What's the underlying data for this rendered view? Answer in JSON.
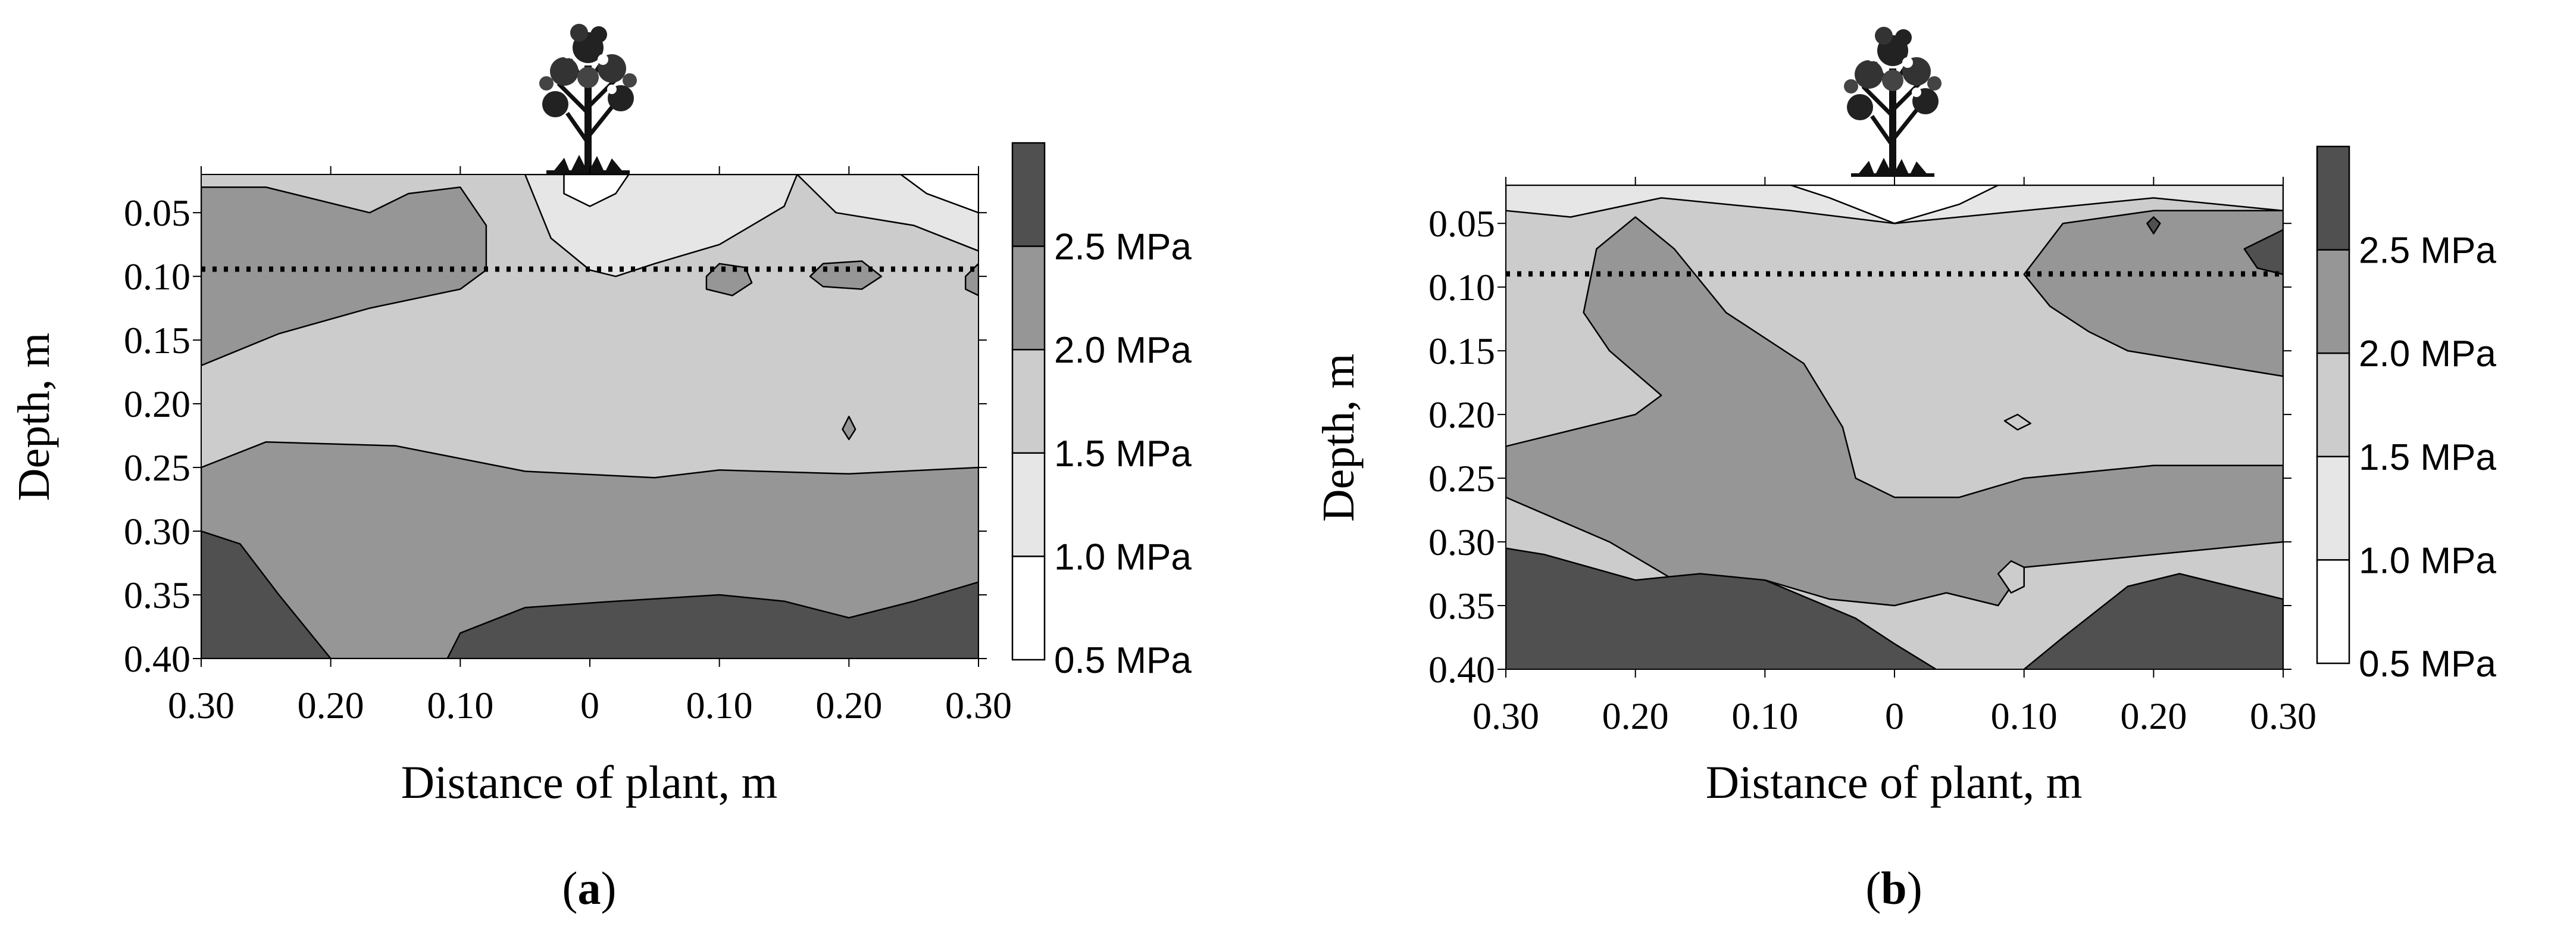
{
  "figure": {
    "colors": {
      "band_0": "#ffffff",
      "band_1": "#e6e6e6",
      "band_2": "#cccccc",
      "band_3": "#969696",
      "band_4": "#505050",
      "line": "#000000"
    }
  },
  "chart_data": [
    {
      "type": "contour",
      "panel": "a",
      "caption_open": "(",
      "caption": "a",
      "caption_close": ")",
      "xlabel": "Distance of plant, m",
      "ylabel": "Depth, m",
      "x_ticks": [
        "0.30",
        "0.20",
        "0.10",
        "0",
        "0.10",
        "0.20",
        "0.30"
      ],
      "x_values": [
        -0.3,
        -0.2,
        -0.1,
        0,
        0.1,
        0.2,
        0.3
      ],
      "xlim": [
        -0.3,
        0.3
      ],
      "y_ticks": [
        "0.05",
        "0.10",
        "0.15",
        "0.20",
        "0.25",
        "0.30",
        "0.35",
        "0.40"
      ],
      "y_values": [
        0.05,
        0.1,
        0.15,
        0.2,
        0.25,
        0.3,
        0.35,
        0.4
      ],
      "ylim": [
        0.02,
        0.4
      ],
      "reference_line_depth": 0.1,
      "levels": [
        0.5,
        1.0,
        1.5,
        2.0,
        2.5
      ],
      "legend": [
        "2.5 MPa",
        "2.0 MPa",
        "1.5 MPa",
        "1.0 MPa",
        "0.5 MPa"
      ],
      "regions": [
        {
          "level": 3,
          "points": [
            [
              -0.3,
              0.25
            ],
            [
              -0.25,
              0.23
            ],
            [
              -0.15,
              0.233
            ],
            [
              -0.05,
              0.253
            ],
            [
              0.05,
              0.258
            ],
            [
              0.1,
              0.252
            ],
            [
              0.2,
              0.255
            ],
            [
              0.3,
              0.25
            ],
            [
              0.3,
              0.4
            ],
            [
              -0.3,
              0.4
            ]
          ]
        },
        {
          "level": 4,
          "points": [
            [
              -0.3,
              0.3
            ],
            [
              -0.27,
              0.31
            ],
            [
              -0.24,
              0.35
            ],
            [
              -0.2,
              0.4
            ],
            [
              -0.3,
              0.4
            ]
          ]
        },
        {
          "level": 4,
          "points": [
            [
              -0.11,
              0.4
            ],
            [
              -0.1,
              0.38
            ],
            [
              -0.05,
              0.36
            ],
            [
              0.02,
              0.355
            ],
            [
              0.1,
              0.35
            ],
            [
              0.15,
              0.355
            ],
            [
              0.2,
              0.368
            ],
            [
              0.25,
              0.355
            ],
            [
              0.3,
              0.34
            ],
            [
              0.3,
              0.4
            ]
          ]
        },
        {
          "level": 3,
          "points": [
            [
              -0.3,
              0.03
            ],
            [
              -0.25,
              0.03
            ],
            [
              -0.17,
              0.05
            ],
            [
              -0.14,
              0.035
            ],
            [
              -0.1,
              0.03
            ],
            [
              -0.08,
              0.06
            ],
            [
              -0.08,
              0.095
            ],
            [
              -0.1,
              0.11
            ],
            [
              -0.17,
              0.125
            ],
            [
              -0.24,
              0.145
            ],
            [
              -0.3,
              0.17
            ]
          ]
        },
        {
          "level": 1,
          "points": [
            [
              -0.05,
              0.02
            ],
            [
              -0.03,
              0.07
            ],
            [
              0,
              0.095
            ],
            [
              0.02,
              0.1
            ],
            [
              0.05,
              0.09
            ],
            [
              0.1,
              0.075
            ],
            [
              0.15,
              0.045
            ],
            [
              0.16,
              0.02
            ]
          ]
        },
        {
          "level": 0,
          "points": [
            [
              -0.02,
              0.02
            ],
            [
              -0.02,
              0.035
            ],
            [
              0,
              0.045
            ],
            [
              0.02,
              0.035
            ],
            [
              0.03,
              0.02
            ]
          ]
        },
        {
          "level": 1,
          "points": [
            [
              0.16,
              0.02
            ],
            [
              0.19,
              0.05
            ],
            [
              0.25,
              0.06
            ],
            [
              0.3,
              0.08
            ],
            [
              0.3,
              0.02
            ]
          ]
        },
        {
          "level": 0,
          "points": [
            [
              0.24,
              0.02
            ],
            [
              0.26,
              0.035
            ],
            [
              0.3,
              0.05
            ],
            [
              0.3,
              0.02
            ]
          ]
        },
        {
          "level": 3,
          "points": [
            [
              0.09,
              0.1
            ],
            [
              0.1,
              0.09
            ],
            [
              0.12,
              0.093
            ],
            [
              0.125,
              0.105
            ],
            [
              0.11,
              0.115
            ],
            [
              0.09,
              0.11
            ]
          ]
        },
        {
          "level": 3,
          "points": [
            [
              0.17,
              0.1
            ],
            [
              0.18,
              0.09
            ],
            [
              0.21,
              0.088
            ],
            [
              0.225,
              0.1
            ],
            [
              0.21,
              0.11
            ],
            [
              0.18,
              0.108
            ]
          ]
        },
        {
          "level": 3,
          "points": [
            [
              0.29,
              0.1
            ],
            [
              0.3,
              0.09
            ],
            [
              0.3,
              0.115
            ],
            [
              0.29,
              0.11
            ]
          ]
        },
        {
          "level": 3,
          "points": [
            [
              0.195,
              0.22
            ],
            [
              0.2,
              0.21
            ],
            [
              0.205,
              0.22
            ],
            [
              0.2,
              0.228
            ]
          ]
        }
      ]
    },
    {
      "type": "contour",
      "panel": "b",
      "caption_open": "(",
      "caption": "b",
      "caption_close": ")",
      "xlabel": "Distance of plant, m",
      "ylabel": "Depth, m",
      "x_ticks": [
        "0.30",
        "0.20",
        "0.10",
        "0",
        "0.10",
        "0.20",
        "0.30"
      ],
      "x_values": [
        -0.3,
        -0.2,
        -0.1,
        0,
        0.1,
        0.2,
        0.3
      ],
      "xlim": [
        -0.3,
        0.3
      ],
      "y_ticks": [
        "0.05",
        "0.10",
        "0.15",
        "0.20",
        "0.25",
        "0.30",
        "0.35",
        "0.40"
      ],
      "y_values": [
        0.05,
        0.1,
        0.15,
        0.2,
        0.25,
        0.3,
        0.35,
        0.4
      ],
      "ylim": [
        0.02,
        0.4
      ],
      "reference_line_depth": 0.1,
      "levels": [
        0.5,
        1.0,
        1.5,
        2.0,
        2.5
      ],
      "legend": [
        "2.5 MPa",
        "2.0 MPa",
        "1.5 MPa",
        "1.0 MPa",
        "0.5 MPa"
      ],
      "regions": [
        {
          "level": 1,
          "points": [
            [
              -0.3,
              0.02
            ],
            [
              -0.3,
              0.04
            ],
            [
              -0.25,
              0.045
            ],
            [
              -0.18,
              0.03
            ],
            [
              -0.08,
              0.04
            ],
            [
              0,
              0.05
            ],
            [
              0.05,
              0.045
            ],
            [
              0.15,
              0.035
            ],
            [
              0.2,
              0.03
            ],
            [
              0.3,
              0.04
            ],
            [
              0.3,
              0.02
            ]
          ]
        },
        {
          "level": 0,
          "points": [
            [
              -0.08,
              0.02
            ],
            [
              -0.05,
              0.03
            ],
            [
              0,
              0.05
            ],
            [
              0.05,
              0.035
            ],
            [
              0.08,
              0.02
            ]
          ]
        },
        {
          "level": 3,
          "points": [
            [
              -0.23,
              0.07
            ],
            [
              -0.2,
              0.045
            ],
            [
              -0.17,
              0.07
            ],
            [
              -0.13,
              0.12
            ],
            [
              -0.07,
              0.16
            ],
            [
              -0.04,
              0.21
            ],
            [
              -0.03,
              0.25
            ],
            [
              0,
              0.265
            ],
            [
              0.05,
              0.265
            ],
            [
              0.1,
              0.25
            ],
            [
              0.2,
              0.24
            ],
            [
              0.3,
              0.24
            ],
            [
              0.3,
              0.3
            ],
            [
              0.2,
              0.31
            ],
            [
              0.1,
              0.32
            ],
            [
              0.08,
              0.35
            ],
            [
              0.04,
              0.34
            ],
            [
              0,
              0.35
            ],
            [
              -0.05,
              0.345
            ],
            [
              -0.1,
              0.33
            ],
            [
              -0.17,
              0.33
            ],
            [
              -0.22,
              0.3
            ],
            [
              -0.3,
              0.265
            ],
            [
              -0.3,
              0.225
            ],
            [
              -0.22,
              0.205
            ],
            [
              -0.2,
              0.2
            ],
            [
              -0.18,
              0.185
            ],
            [
              -0.22,
              0.15
            ],
            [
              -0.24,
              0.12
            ]
          ]
        },
        {
          "level": 3,
          "points": [
            [
              0.1,
              0.09
            ],
            [
              0.13,
              0.05
            ],
            [
              0.2,
              0.04
            ],
            [
              0.25,
              0.04
            ],
            [
              0.3,
              0.04
            ],
            [
              0.3,
              0.17
            ],
            [
              0.24,
              0.16
            ],
            [
              0.18,
              0.15
            ],
            [
              0.15,
              0.135
            ],
            [
              0.12,
              0.115
            ]
          ]
        },
        {
          "level": 4,
          "points": [
            [
              -0.3,
              0.305
            ],
            [
              -0.27,
              0.31
            ],
            [
              -0.2,
              0.33
            ],
            [
              -0.15,
              0.325
            ],
            [
              -0.1,
              0.33
            ],
            [
              -0.03,
              0.36
            ],
            [
              0,
              0.38
            ],
            [
              0.04,
              0.405
            ],
            [
              -0.3,
              0.405
            ]
          ]
        },
        {
          "level": 4,
          "points": [
            [
              0.1,
              0.4
            ],
            [
              0.13,
              0.375
            ],
            [
              0.18,
              0.335
            ],
            [
              0.22,
              0.325
            ],
            [
              0.26,
              0.335
            ],
            [
              0.3,
              0.345
            ],
            [
              0.3,
              0.405
            ]
          ]
        },
        {
          "level": 4,
          "points": [
            [
              0.27,
              0.07
            ],
            [
              0.29,
              0.06
            ],
            [
              0.3,
              0.055
            ],
            [
              0.3,
              0.09
            ],
            [
              0.28,
              0.085
            ]
          ]
        },
        {
          "level": 4,
          "points": [
            [
              0.195,
              0.05
            ],
            [
              0.2,
              0.045
            ],
            [
              0.205,
              0.05
            ],
            [
              0.2,
              0.058
            ]
          ]
        },
        {
          "level": 2,
          "points": [
            [
              0.08,
              0.325
            ],
            [
              0.09,
              0.315
            ],
            [
              0.1,
              0.32
            ],
            [
              0.1,
              0.335
            ],
            [
              0.09,
              0.34
            ]
          ]
        },
        {
          "level": 2,
          "points": [
            [
              0.085,
              0.205
            ],
            [
              0.095,
              0.2
            ],
            [
              0.105,
              0.207
            ],
            [
              0.095,
              0.212
            ]
          ]
        }
      ]
    }
  ]
}
